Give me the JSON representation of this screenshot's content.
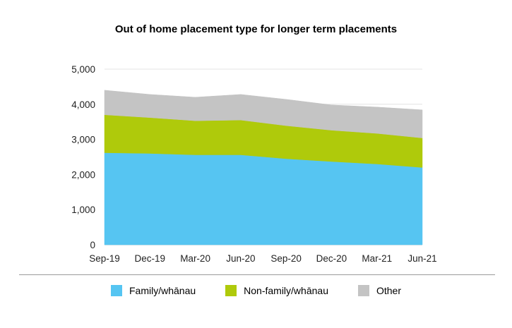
{
  "chart_data": {
    "type": "area",
    "stacked": true,
    "title": "Out of home placement type for longer term placements",
    "categories": [
      "Sep-19",
      "Dec-19",
      "Mar-20",
      "Jun-20",
      "Sep-20",
      "Dec-20",
      "Mar-21",
      "Jun-21"
    ],
    "series": [
      {
        "name": "Family/whānau",
        "color": "#56C5F2",
        "values": [
          2620,
          2600,
          2560,
          2560,
          2450,
          2370,
          2300,
          2200
        ]
      },
      {
        "name": "Non-family/whānau",
        "color": "#AFCA0B",
        "values": [
          1080,
          1020,
          970,
          990,
          940,
          890,
          870,
          840
        ]
      },
      {
        "name": "Other",
        "color": "#C4C4C4",
        "values": [
          700,
          660,
          670,
          730,
          750,
          720,
          750,
          800
        ]
      }
    ],
    "y_ticks": [
      "0",
      "1,000",
      "2,000",
      "3,000",
      "4,000",
      "5,000"
    ],
    "ylim": [
      0,
      5000
    ],
    "grid": true,
    "legend_position": "bottom"
  }
}
